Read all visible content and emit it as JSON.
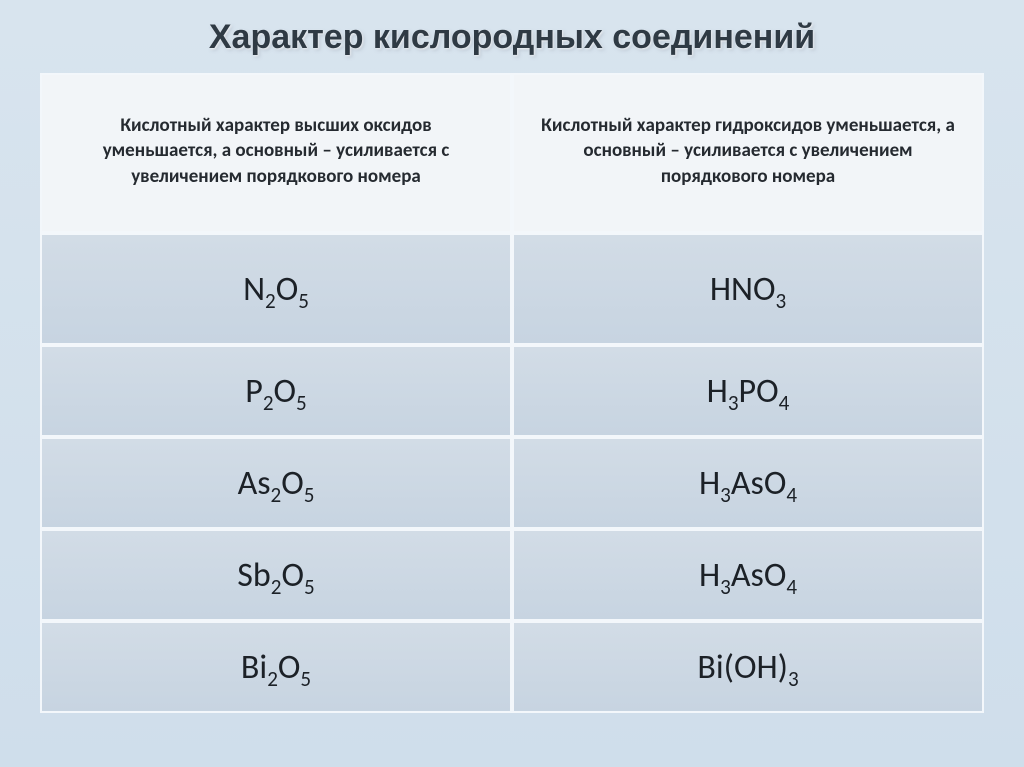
{
  "title": "Характер кислородных  соединений",
  "headers": {
    "left": "Кислотный характер высших оксидов уменьшается, а основный – усиливается с увеличением порядкового номера",
    "right": "Кислотный характер гидроксидов уменьшается,\nа основный – усиливается  с увеличением порядкового номера"
  },
  "rows": [
    {
      "oxide": "N<sub>2</sub>O<sub>5</sub>",
      "hydroxide": "HNO<sub>3</sub>"
    },
    {
      "oxide": "P<sub>2</sub>O<sub>5</sub>",
      "hydroxide": "H<sub>3</sub>PO<sub>4</sub>"
    },
    {
      "oxide": "As<sub>2</sub>O<sub>5</sub>",
      "hydroxide": "H<sub>3</sub>AsO<sub>4</sub>"
    },
    {
      "oxide": "Sb<sub>2</sub>O<sub>5</sub>",
      "hydroxide": "H<sub>3</sub>AsO<sub>4</sub>"
    },
    {
      "oxide": "Bi<sub>2</sub>O<sub>5</sub>",
      "hydroxide": "Bi(OH)<sub>3</sub>"
    }
  ],
  "style": {
    "background_gradient": [
      "#d8e4ee",
      "#cfdeeb"
    ],
    "header_bg": "#f2f5f8",
    "row_bg_gradient": [
      "#d2dce6",
      "#c7d4e1"
    ],
    "border_color": "#f3f7fb",
    "title_color": "#2f3a44",
    "header_text_color": "#252a30",
    "cell_text_color": "#1c2127",
    "title_fontsize": 34,
    "header_fontsize": 19,
    "cell_fontsize": 34
  }
}
